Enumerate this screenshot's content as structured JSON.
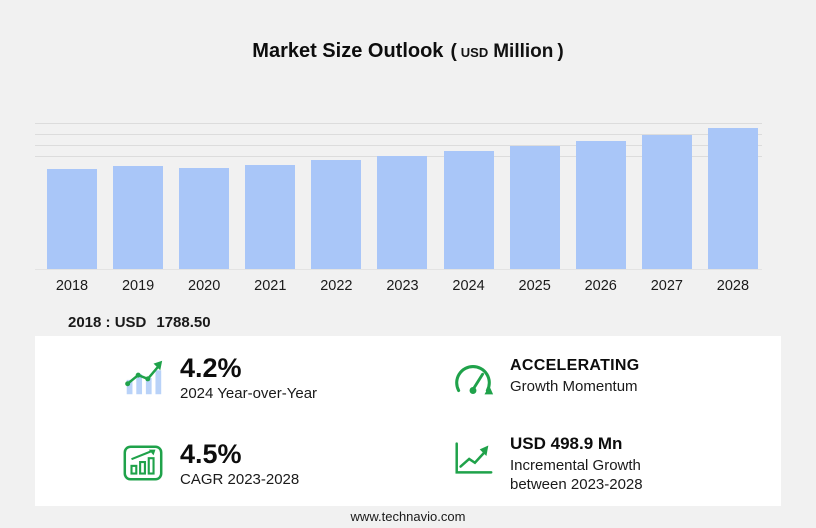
{
  "title": {
    "main": "Market Size Outlook",
    "paren_open": "(",
    "unit_small": "USD",
    "unit_big": "Million",
    "paren_close": ")"
  },
  "chart_data": {
    "type": "bar",
    "title": "Market Size Outlook (USD Million)",
    "categories": [
      "2018",
      "2019",
      "2020",
      "2021",
      "2022",
      "2023",
      "2024",
      "2025",
      "2026",
      "2027",
      "2028"
    ],
    "values": [
      1788.5,
      1847,
      1800,
      1865,
      1955,
      2026.6,
      2111.7,
      2205,
      2295,
      2403,
      2525.4
    ],
    "ylim": [
      0,
      2700
    ],
    "gridline_values": [
      2000,
      2200,
      2400,
      2600
    ],
    "grid": "horizontal-top",
    "legend": "none",
    "xlabel": "",
    "ylabel": "",
    "bar_color": "#a9c6f8",
    "annotation": {
      "label": "2018 : USD",
      "value": "1788.50"
    }
  },
  "stats": {
    "yoy": {
      "value": "4.2%",
      "caption": "2024 Year-over-Year"
    },
    "momentum": {
      "value": "ACCELERATING",
      "caption": "Growth Momentum"
    },
    "cagr": {
      "value": "4.5%",
      "caption": "CAGR 2023-2028"
    },
    "incremental": {
      "value": "USD 498.9 Mn",
      "caption": "Incremental Growth between 2023-2028"
    }
  },
  "icons": {
    "yoy": "bar-trend-up-icon",
    "momentum": "speedometer-icon",
    "cagr": "boxed-bar-chart-icon",
    "incremental": "growth-arrow-axis-icon"
  },
  "footer": {
    "url": "www.technavio.com"
  },
  "colors": {
    "background": "#f1f1f1",
    "card": "#ffffff",
    "bar": "#a9c6f8",
    "icon_bar_blue": "#b9d2f8",
    "accent_green": "#1fa24a",
    "gridline": "#dcdcdc",
    "text": "#0d0d0d"
  }
}
